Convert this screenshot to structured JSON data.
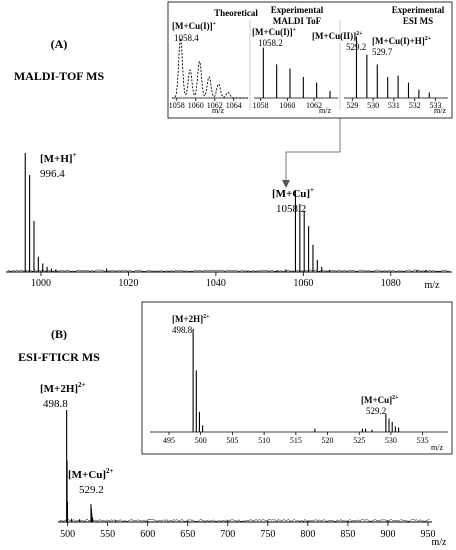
{
  "chart_data": [
    {
      "type": "line",
      "id": "A",
      "panel_label": "(A)",
      "title": "MALDI-TOF MS",
      "xlabel": "m/z",
      "xlim": [
        992,
        1094
      ],
      "xticks": [
        1000,
        1020,
        1040,
        1060,
        1080
      ],
      "peaks": [
        {
          "x": 996.4,
          "y": 0.7
        },
        {
          "x": 997.4,
          "y": 0.57
        },
        {
          "x": 998.4,
          "y": 0.3
        },
        {
          "x": 999.4,
          "y": 0.09
        },
        {
          "x": 1000.4,
          "y": 0.05
        },
        {
          "x": 1001.4,
          "y": 0.03
        },
        {
          "x": 1002.4,
          "y": 0.02
        },
        {
          "x": 1003.4,
          "y": 0.015
        },
        {
          "x": 1015.0,
          "y": 0.02
        },
        {
          "x": 1054.0,
          "y": 0.01
        },
        {
          "x": 1056.0,
          "y": 0.015
        },
        {
          "x": 1058.2,
          "y": 0.48
        },
        {
          "x": 1059.2,
          "y": 0.4
        },
        {
          "x": 1060.2,
          "y": 0.36
        },
        {
          "x": 1061.2,
          "y": 0.27
        },
        {
          "x": 1062.2,
          "y": 0.16
        },
        {
          "x": 1063.2,
          "y": 0.07
        },
        {
          "x": 1064.2,
          "y": 0.03
        },
        {
          "x": 1066.0,
          "y": 0.01
        },
        {
          "x": 1086.0,
          "y": 0.01
        },
        {
          "x": 1088.0,
          "y": 0.012
        }
      ],
      "annotations": [
        {
          "label": "[M+H]",
          "charge": "+",
          "value": "996.4"
        },
        {
          "label": "[M+Cu]",
          "charge": "+",
          "value": "1058.2"
        }
      ]
    },
    {
      "type": "line",
      "id": "A-inset",
      "panels": [
        {
          "header": [
            "Theoretical"
          ],
          "annot": "[M+Cu(I)]",
          "charge": "+",
          "annot_value": "1058.4",
          "xlim": [
            1057.5,
            1065.5
          ],
          "xticks": [
            1058,
            1060,
            1062,
            1064
          ],
          "profile": [
            {
              "x": 1058.4,
              "y": 0.85
            },
            {
              "x": 1059.4,
              "y": 0.4
            },
            {
              "x": 1060.4,
              "y": 0.52
            },
            {
              "x": 1061.4,
              "y": 0.3
            },
            {
              "x": 1062.4,
              "y": 0.2
            },
            {
              "x": 1063.4,
              "y": 0.08
            }
          ]
        },
        {
          "header": [
            "Experimental",
            "MALDI ToF"
          ],
          "annot": "[M+Cu(I)]",
          "charge": "+",
          "annot_value": "1058.2",
          "xlim": [
            1057.5,
            1063.8
          ],
          "xticks": [
            1058,
            1060,
            1062
          ],
          "peaks": [
            {
              "x": 1058.2,
              "y": 0.72
            },
            {
              "x": 1059.2,
              "y": 0.48
            },
            {
              "x": 1060.2,
              "y": 0.42
            },
            {
              "x": 1061.2,
              "y": 0.3
            },
            {
              "x": 1062.2,
              "y": 0.22
            },
            {
              "x": 1063.2,
              "y": 0.1
            }
          ]
        },
        {
          "header": [
            "Experimental",
            "ESI  MS"
          ],
          "annot": "[M+Cu(II)]",
          "charge": "2+",
          "annot_value": "529.2",
          "annot2": "[M+Cu(I)+H]",
          "charge2": "2+",
          "annot2_value": "529.7",
          "xlim": [
            528.6,
            533.6
          ],
          "xticks": [
            529,
            530,
            531,
            532,
            533
          ],
          "peaks": [
            {
              "x": 529.2,
              "y": 0.88
            },
            {
              "x": 529.7,
              "y": 0.62
            },
            {
              "x": 530.2,
              "y": 0.48
            },
            {
              "x": 530.7,
              "y": 0.3
            },
            {
              "x": 531.2,
              "y": 0.32
            },
            {
              "x": 531.7,
              "y": 0.22
            },
            {
              "x": 532.2,
              "y": 0.12
            },
            {
              "x": 532.7,
              "y": 0.08
            }
          ]
        }
      ],
      "xlabel": "m/z"
    },
    {
      "type": "line",
      "id": "B",
      "panel_label": "(B)",
      "title": "ESI-FTICR MS",
      "xlabel": "m/z",
      "xlim": [
        488,
        955
      ],
      "xticks": [
        500,
        550,
        600,
        650,
        700,
        750,
        800,
        850,
        900,
        950
      ],
      "peaks": [
        {
          "x": 498.8,
          "y": 1.0
        },
        {
          "x": 499.3,
          "y": 0.55
        },
        {
          "x": 499.8,
          "y": 0.18
        },
        {
          "x": 505.0,
          "y": 0.03
        },
        {
          "x": 529.2,
          "y": 0.16
        },
        {
          "x": 529.7,
          "y": 0.12
        },
        {
          "x": 530.2,
          "y": 0.08
        },
        {
          "x": 531.2,
          "y": 0.04
        },
        {
          "x": 515.0,
          "y": 0.025
        },
        {
          "x": 560.0,
          "y": 0.015
        },
        {
          "x": 600.0,
          "y": 0.012
        },
        {
          "x": 650.0,
          "y": 0.012
        },
        {
          "x": 700.0,
          "y": 0.012
        },
        {
          "x": 750.0,
          "y": 0.012
        },
        {
          "x": 800.0,
          "y": 0.012
        },
        {
          "x": 850.0,
          "y": 0.012
        },
        {
          "x": 900.0,
          "y": 0.015
        }
      ],
      "annotations": [
        {
          "label": "[M+2H]",
          "charge": "2+",
          "value": "498.8"
        },
        {
          "label": "[M+Cu]",
          "charge": "2+",
          "value": "529.2"
        }
      ]
    },
    {
      "type": "line",
      "id": "B-inset",
      "xlabel": "m/z",
      "xlim": [
        492,
        539
      ],
      "xticks": [
        495,
        500,
        505,
        510,
        515,
        520,
        525,
        530,
        535
      ],
      "peaks": [
        {
          "x": 498.8,
          "y": 0.92
        },
        {
          "x": 499.3,
          "y": 0.55
        },
        {
          "x": 499.8,
          "y": 0.18
        },
        {
          "x": 500.3,
          "y": 0.06
        },
        {
          "x": 518.0,
          "y": 0.03
        },
        {
          "x": 525.5,
          "y": 0.03
        },
        {
          "x": 526.0,
          "y": 0.03
        },
        {
          "x": 527.0,
          "y": 0.02
        },
        {
          "x": 529.2,
          "y": 0.16
        },
        {
          "x": 529.7,
          "y": 0.12
        },
        {
          "x": 530.2,
          "y": 0.09
        },
        {
          "x": 530.7,
          "y": 0.05
        },
        {
          "x": 531.2,
          "y": 0.04
        }
      ],
      "annotations": [
        {
          "label": "[M+2H]",
          "charge": "2+",
          "value": "498.8"
        },
        {
          "label": "[M+Cu]",
          "charge": "2+",
          "value": "529.2"
        }
      ]
    }
  ]
}
